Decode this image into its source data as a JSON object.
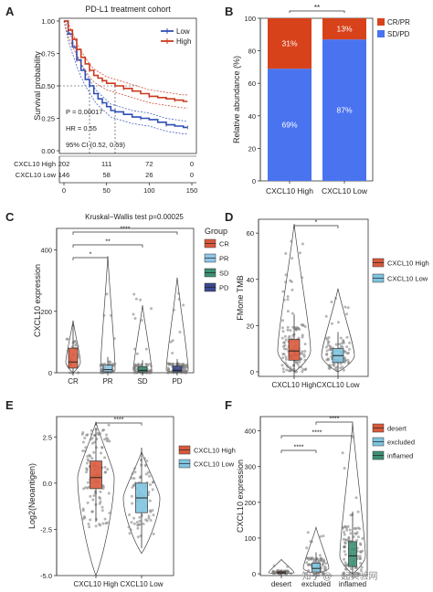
{
  "colors": {
    "low_blue": "#2f4eb5",
    "high_red": "#c93a1f",
    "cr_orange": "#d8421a",
    "sd_blue": "#4a73f0",
    "cr_red": "#d9593c",
    "pr_blue": "#8fc6e6",
    "sd_green": "#3c8f73",
    "pd_navy": "#3b4a8f",
    "high_red_box": "#d9593c",
    "low_cyan_box": "#7fc4e0",
    "desert_red": "#d9593c",
    "excluded_cyan": "#7fc4e0",
    "inflamed_green": "#3c8f73"
  },
  "panels": {
    "A": "A",
    "B": "B",
    "C": "C",
    "D": "D",
    "E": "E",
    "F": "F"
  },
  "watermark": "知乎 @一起实验网",
  "chart_data": [
    {
      "panel": "A",
      "type": "line",
      "title": "PD-L1 treatment cohort",
      "ylabel": "Survival probability",
      "xticks": [
        "0",
        "50",
        "100",
        "150"
      ],
      "yticks": [
        "0.00",
        "0.25",
        "0.50",
        "0.75",
        "1.00"
      ],
      "xlim": [
        0,
        150
      ],
      "ylim": [
        0,
        1
      ],
      "legend": [
        "Low",
        "High"
      ],
      "legend_position": "top-right",
      "annotations": {
        "p": "P = 0.00017",
        "hr": "HR = 0.55",
        "ci": "95% CI (0.52, 0.59)"
      },
      "series": [
        {
          "name": "Low",
          "x": [
            0,
            5,
            10,
            15,
            20,
            25,
            30,
            35,
            40,
            45,
            50,
            55,
            60,
            70,
            80,
            90,
            100,
            110,
            120,
            130,
            140,
            145
          ],
          "y": [
            1.0,
            0.9,
            0.8,
            0.7,
            0.62,
            0.55,
            0.5,
            0.44,
            0.4,
            0.37,
            0.34,
            0.31,
            0.3,
            0.28,
            0.26,
            0.25,
            0.24,
            0.22,
            0.2,
            0.19,
            0.18,
            0.18
          ]
        },
        {
          "name": "High",
          "x": [
            0,
            5,
            10,
            15,
            20,
            25,
            30,
            35,
            40,
            45,
            50,
            60,
            70,
            80,
            90,
            100,
            110,
            120,
            130,
            140,
            145
          ],
          "y": [
            1.0,
            0.93,
            0.86,
            0.78,
            0.72,
            0.67,
            0.62,
            0.58,
            0.56,
            0.54,
            0.52,
            0.5,
            0.48,
            0.46,
            0.44,
            0.42,
            0.41,
            0.4,
            0.39,
            0.38,
            0.38
          ]
        }
      ],
      "risk_table": {
        "rows": [
          {
            "label": "CXCL10 High",
            "values": [
              "202",
              "111",
              "72",
              "0"
            ]
          },
          {
            "label": "CXCL10 Low",
            "values": [
              "146",
              "58",
              "26",
              "0"
            ]
          }
        ]
      }
    },
    {
      "panel": "B",
      "type": "bar",
      "ylabel": "Relative abundance (%)",
      "categories": [
        "CXCL10 High",
        "CXCL10 Low"
      ],
      "yticks": [
        "0",
        "20",
        "40",
        "60",
        "80",
        "100"
      ],
      "ylim": [
        0,
        100
      ],
      "series": [
        {
          "name": "SD/PD",
          "values": [
            69,
            87
          ],
          "labels": [
            "69%",
            "87%"
          ]
        },
        {
          "name": "CR/PR",
          "values": [
            31,
            13
          ],
          "labels": [
            "31%",
            "13%"
          ]
        }
      ],
      "legend": [
        "CR/PR",
        "SD/PD"
      ],
      "legend_position": "right",
      "significance": "**"
    },
    {
      "panel": "C",
      "type": "box",
      "title": "Kruskal−Wallis test p=0.00025",
      "ylabel": "CXCL10 expression",
      "categories": [
        "CR",
        "PR",
        "SD",
        "PD"
      ],
      "yticks": [
        "0",
        "200",
        "400"
      ],
      "ylim": [
        0,
        470
      ],
      "boxes": [
        {
          "q1": 15,
          "median": 35,
          "q3": 80
        },
        {
          "q1": 3,
          "median": 10,
          "q3": 25
        },
        {
          "q1": 3,
          "median": 8,
          "q3": 20
        },
        {
          "q1": 3,
          "median": 8,
          "q3": 22
        }
      ],
      "significance": [
        "*",
        "**",
        "****"
      ],
      "legend_title": "Group",
      "legend": [
        "CR",
        "PR",
        "SD",
        "PD"
      ],
      "legend_position": "right"
    },
    {
      "panel": "D",
      "type": "violin",
      "ylabel": "FMone TMB",
      "categories": [
        "CXCL10 High",
        "CXCL10 Low"
      ],
      "yticks": [
        "0",
        "20",
        "40",
        "60"
      ],
      "ylim": [
        -2,
        66
      ],
      "boxes": [
        {
          "q1": 5,
          "median": 9,
          "q3": 14
        },
        {
          "q1": 4,
          "median": 7,
          "q3": 10
        }
      ],
      "significance": "*",
      "legend": [
        "CXCL10 High",
        "CXCL10 Low"
      ],
      "legend_position": "right"
    },
    {
      "panel": "E",
      "type": "violin",
      "ylabel": "Log2(Neoantigen)",
      "categories": [
        "CXCL10 High",
        "CXCL10 Low"
      ],
      "yticks": [
        "-5.0",
        "-2.5",
        "0.0",
        "2.5"
      ],
      "ylim": [
        -5,
        3.6
      ],
      "boxes": [
        {
          "q1": -0.3,
          "median": 0.3,
          "q3": 1.2
        },
        {
          "q1": -1.6,
          "median": -0.8,
          "q3": 0
        }
      ],
      "significance": "****",
      "legend": [
        "CXCL10 High",
        "CXCL10 Low"
      ],
      "legend_position": "right"
    },
    {
      "panel": "F",
      "type": "violin",
      "ylabel": "CXCL10 expression",
      "categories": [
        "desert",
        "excluded",
        "inflamed"
      ],
      "yticks": [
        "0",
        "100",
        "200",
        "300",
        "400"
      ],
      "ylim": [
        -5,
        440
      ],
      "boxes": [
        {
          "q1": 1,
          "median": 3,
          "q3": 6
        },
        {
          "q1": 5,
          "median": 15,
          "q3": 30
        },
        {
          "q1": 20,
          "median": 50,
          "q3": 90
        }
      ],
      "significance": [
        "****",
        "****",
        "****"
      ],
      "legend": [
        "desert",
        "excluded",
        "inflamed"
      ],
      "legend_position": "right"
    }
  ]
}
